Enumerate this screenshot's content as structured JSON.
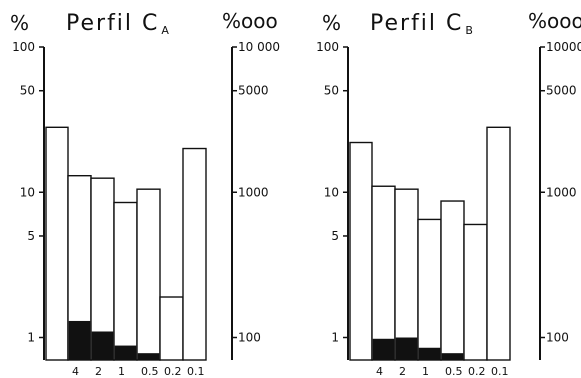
{
  "chart_data": [
    {
      "type": "bar",
      "title": "Perfil C",
      "title_subscript": "A",
      "left_unit": "%",
      "right_unit": "%ooo",
      "left_scale": "log",
      "right_scale": "log",
      "left_range": [
        0.7,
        100
      ],
      "right_range": [
        70,
        10000
      ],
      "left_ticks": [
        {
          "value": 100,
          "label": "100"
        },
        {
          "value": 50,
          "label": "50"
        },
        {
          "value": 10,
          "label": "10"
        },
        {
          "value": 5,
          "label": "5"
        },
        {
          "value": 1,
          "label": "1"
        }
      ],
      "right_ticks": [
        {
          "value": 10000,
          "label": "10 000"
        },
        {
          "value": 5000,
          "label": "5000"
        },
        {
          "value": 1000,
          "label": "1000"
        },
        {
          "value": 100,
          "label": "100"
        }
      ],
      "categories": [
        "4",
        "2",
        "1",
        "0.5",
        "0.2",
        "0.1"
      ],
      "extra_bar_value": 28,
      "series": [
        {
          "values": [
            13,
            12.5,
            8.5,
            10.5,
            1.9,
            20
          ]
        },
        {
          "values": [
            1.3,
            1.1,
            0.88,
            0.78,
            null,
            null
          ]
        }
      ]
    },
    {
      "type": "bar",
      "title": "Perfil C",
      "title_subscript": "B",
      "left_unit": "%",
      "right_unit": "%ooo",
      "left_scale": "log",
      "right_scale": "log",
      "left_range": [
        0.7,
        100
      ],
      "right_range": [
        70,
        10000
      ],
      "left_ticks": [
        {
          "value": 100,
          "label": "100"
        },
        {
          "value": 50,
          "label": "50"
        },
        {
          "value": 10,
          "label": "10"
        },
        {
          "value": 5,
          "label": "5"
        },
        {
          "value": 1,
          "label": "1"
        }
      ],
      "right_ticks": [
        {
          "value": 10000,
          "label": "10000"
        },
        {
          "value": 5000,
          "label": "5000"
        },
        {
          "value": 1000,
          "label": "1000"
        },
        {
          "value": 100,
          "label": "100"
        }
      ],
      "categories": [
        "4",
        "2",
        "1",
        "0.5",
        "0.2",
        "0.1"
      ],
      "extra_bar_value": 22,
      "series": [
        {
          "values": [
            11,
            10.5,
            6.5,
            8.7,
            6,
            28
          ]
        },
        {
          "values": [
            0.98,
            1.0,
            0.85,
            0.78,
            null,
            null
          ]
        }
      ]
    }
  ]
}
